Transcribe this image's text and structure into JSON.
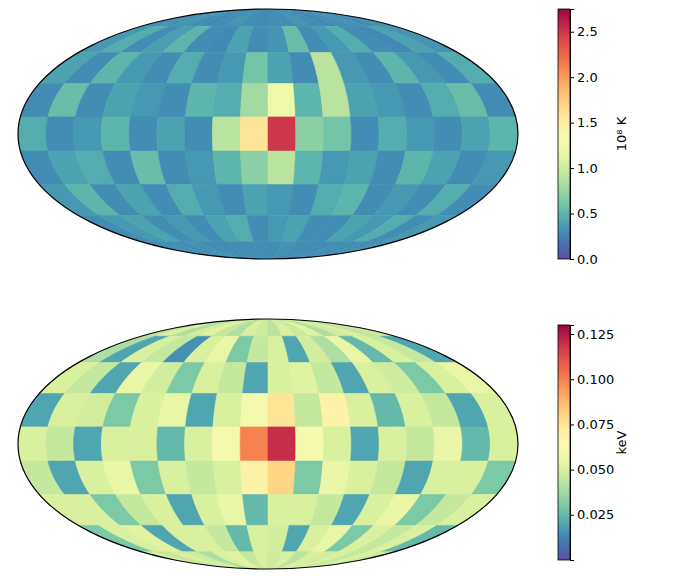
{
  "chart_data": [
    {
      "type": "heatmap",
      "color": "spectral_r",
      "tick_labels": false,
      "xlim": [
        -180,
        180
      ],
      "ylim": [
        -90,
        90
      ],
      "cells": [
        [
          0.3,
          0.32,
          0.35,
          0.3,
          0.28,
          0.3,
          0.33,
          0.3,
          0.29,
          0.31,
          0.3,
          0.34,
          0.3,
          0.28,
          0.3,
          0.33,
          0.3,
          0.31
        ],
        [
          0.35,
          0.45,
          0.3,
          0.38,
          0.5,
          0.3,
          0.28,
          0.4,
          0.3,
          0.33,
          0.55,
          0.3,
          0.36,
          0.45,
          0.3,
          0.28,
          0.4,
          0.33
        ],
        [
          0.4,
          0.3,
          0.5,
          0.35,
          0.3,
          0.45,
          0.3,
          0.35,
          0.6,
          0.4,
          0.3,
          0.9,
          0.35,
          0.3,
          0.5,
          0.35,
          0.3,
          0.45
        ],
        [
          0.3,
          0.55,
          0.3,
          0.4,
          0.35,
          0.3,
          0.5,
          0.45,
          0.8,
          1.2,
          0.5,
          0.9,
          0.4,
          0.35,
          0.3,
          0.45,
          0.55,
          0.3
        ],
        [
          0.45,
          0.3,
          0.35,
          0.5,
          0.3,
          0.4,
          0.3,
          0.9,
          1.6,
          2.5,
          0.7,
          0.6,
          0.3,
          0.45,
          0.35,
          0.3,
          0.4,
          0.5
        ],
        [
          0.3,
          0.4,
          0.45,
          0.3,
          0.55,
          0.3,
          0.35,
          0.5,
          0.7,
          0.9,
          0.5,
          0.35,
          0.4,
          0.3,
          0.5,
          0.4,
          0.3,
          0.35
        ],
        [
          0.35,
          0.5,
          0.3,
          0.4,
          0.3,
          0.45,
          0.35,
          0.3,
          0.4,
          0.35,
          0.3,
          0.45,
          0.5,
          0.3,
          0.35,
          0.3,
          0.45,
          0.3
        ],
        [
          0.3,
          0.35,
          0.4,
          0.3,
          0.35,
          0.3,
          0.4,
          0.45,
          0.3,
          0.35,
          0.4,
          0.3,
          0.3,
          0.4,
          0.35,
          0.45,
          0.3,
          0.35
        ],
        [
          0.3,
          0.31,
          0.3,
          0.32,
          0.3,
          0.29,
          0.3,
          0.31,
          0.3,
          0.3,
          0.32,
          0.3,
          0.29,
          0.3,
          0.31,
          0.3,
          0.3,
          0.32
        ]
      ],
      "colorbar": {
        "range": [
          0,
          2.75
        ],
        "label": "10⁸ K",
        "ticks": [
          {
            "value": 0,
            "label": "0.0"
          },
          0.5,
          {
            "value": 1,
            "label": "1.0"
          },
          1.5,
          {
            "value": 2,
            "label": "2.0"
          },
          2.5
        ]
      }
    },
    {
      "type": "heatmap",
      "color": "spectral_r",
      "tick_labels": false,
      "xlim": [
        -180,
        180
      ],
      "ylim": [
        -90,
        90
      ],
      "cells": [
        [
          0.045,
          0.05,
          0.04,
          0.048,
          0.052,
          0.045,
          0.04,
          0.05,
          0.047,
          0.043,
          0.05,
          0.046,
          0.052,
          0.04,
          0.048,
          0.05,
          0.044,
          0.047
        ],
        [
          0.04,
          0.02,
          0.05,
          0.045,
          0.015,
          0.05,
          0.055,
          0.03,
          0.045,
          0.05,
          0.02,
          0.048,
          0.04,
          0.055,
          0.025,
          0.05,
          0.045,
          0.02
        ],
        [
          0.05,
          0.045,
          0.02,
          0.055,
          0.048,
          0.03,
          0.05,
          0.045,
          0.02,
          0.05,
          0.052,
          0.045,
          0.02,
          0.05,
          0.047,
          0.03,
          0.05,
          0.055
        ],
        [
          0.02,
          0.05,
          0.048,
          0.03,
          0.05,
          0.055,
          0.02,
          0.05,
          0.06,
          0.075,
          0.045,
          0.07,
          0.05,
          0.025,
          0.05,
          0.045,
          0.02,
          0.05
        ],
        [
          0.05,
          0.045,
          0.02,
          0.05,
          0.05,
          0.025,
          0.05,
          0.06,
          0.1,
          0.12,
          0.06,
          0.05,
          0.02,
          0.05,
          0.045,
          0.055,
          0.025,
          0.05
        ],
        [
          0.045,
          0.02,
          0.05,
          0.055,
          0.03,
          0.05,
          0.045,
          0.05,
          0.07,
          0.08,
          0.03,
          0.055,
          0.05,
          0.045,
          0.02,
          0.05,
          0.05,
          0.03
        ],
        [
          0.05,
          0.05,
          0.03,
          0.045,
          0.05,
          0.02,
          0.05,
          0.055,
          0.025,
          0.05,
          0.05,
          0.045,
          0.02,
          0.05,
          0.055,
          0.03,
          0.045,
          0.05
        ],
        [
          0.03,
          0.05,
          0.052,
          0.02,
          0.05,
          0.05,
          0.045,
          0.025,
          0.05,
          0.048,
          0.02,
          0.05,
          0.055,
          0.03,
          0.05,
          0.045,
          0.05,
          0.025
        ],
        [
          0.05,
          0.045,
          0.05,
          0.048,
          0.04,
          0.05,
          0.052,
          0.045,
          0.05,
          0.047,
          0.05,
          0.043,
          0.05,
          0.048,
          0.05,
          0.045,
          0.05,
          0.046
        ]
      ],
      "colorbar": {
        "range": [
          0,
          0.13
        ],
        "label": "keV",
        "ticks": [
          0.025,
          {
            "value": 0.05,
            "label": "0.050"
          },
          0.075,
          {
            "value": 0.1,
            "label": "0.100"
          },
          0.125
        ]
      }
    }
  ]
}
